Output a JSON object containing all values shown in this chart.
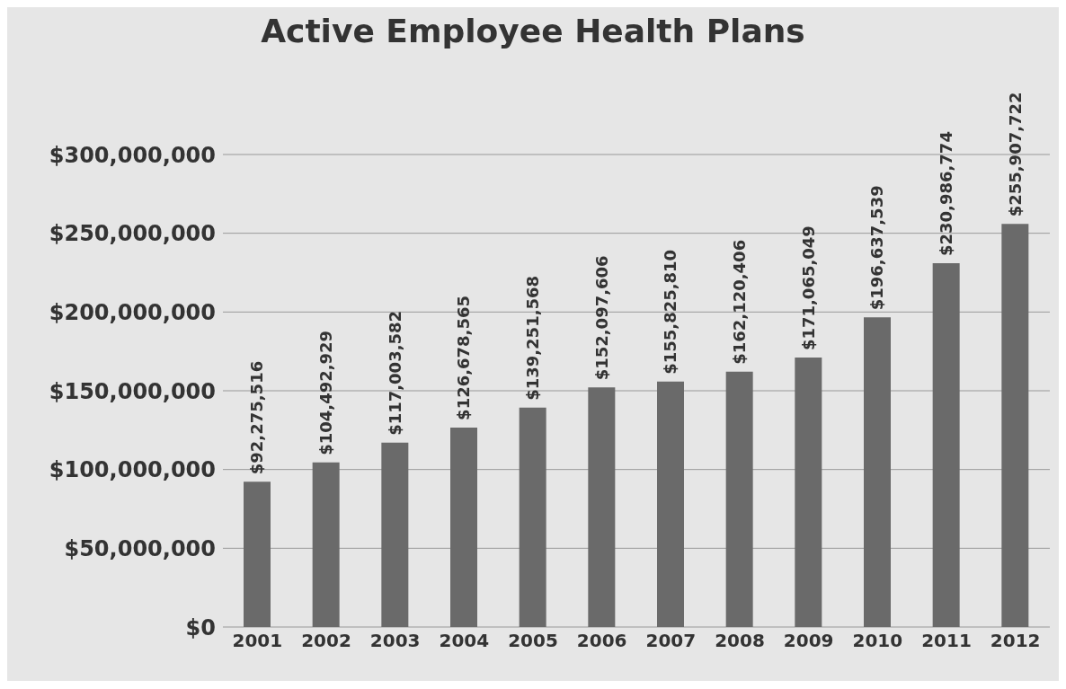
{
  "chart_data": {
    "type": "bar",
    "title": "Active Employee Health Plans",
    "categories": [
      "2001",
      "2002",
      "2003",
      "2004",
      "2005",
      "2006",
      "2007",
      "2008",
      "2009",
      "2010",
      "2011",
      "2012"
    ],
    "values": [
      92275516,
      104492929,
      117003582,
      126678565,
      139251568,
      152097606,
      155825810,
      162120406,
      171065049,
      196637539,
      230986774,
      255907722
    ],
    "value_labels": [
      "$92,275,516",
      "$104,492,929",
      "$117,003,582",
      "$126,678,565",
      "$139,251,568",
      "$152,097,606",
      "$155,825,810",
      "$162,120,406",
      "$171,065,049",
      "$196,637,539",
      "$230,986,774",
      "$255,907,722"
    ],
    "color": "#6a6a6a",
    "ylim": [
      0,
      300000000
    ],
    "yticks": [
      {
        "value": 0,
        "label": "$0"
      },
      {
        "value": 50000000,
        "label": "$50,000,000"
      },
      {
        "value": 100000000,
        "label": "$100,000,000"
      },
      {
        "value": 150000000,
        "label": "$150,000,000"
      },
      {
        "value": 200000000,
        "label": "$200,000,000"
      },
      {
        "value": 250000000,
        "label": "$250,000,000"
      },
      {
        "value": 300000000,
        "label": "$300,000,000"
      }
    ],
    "grid": "y"
  }
}
